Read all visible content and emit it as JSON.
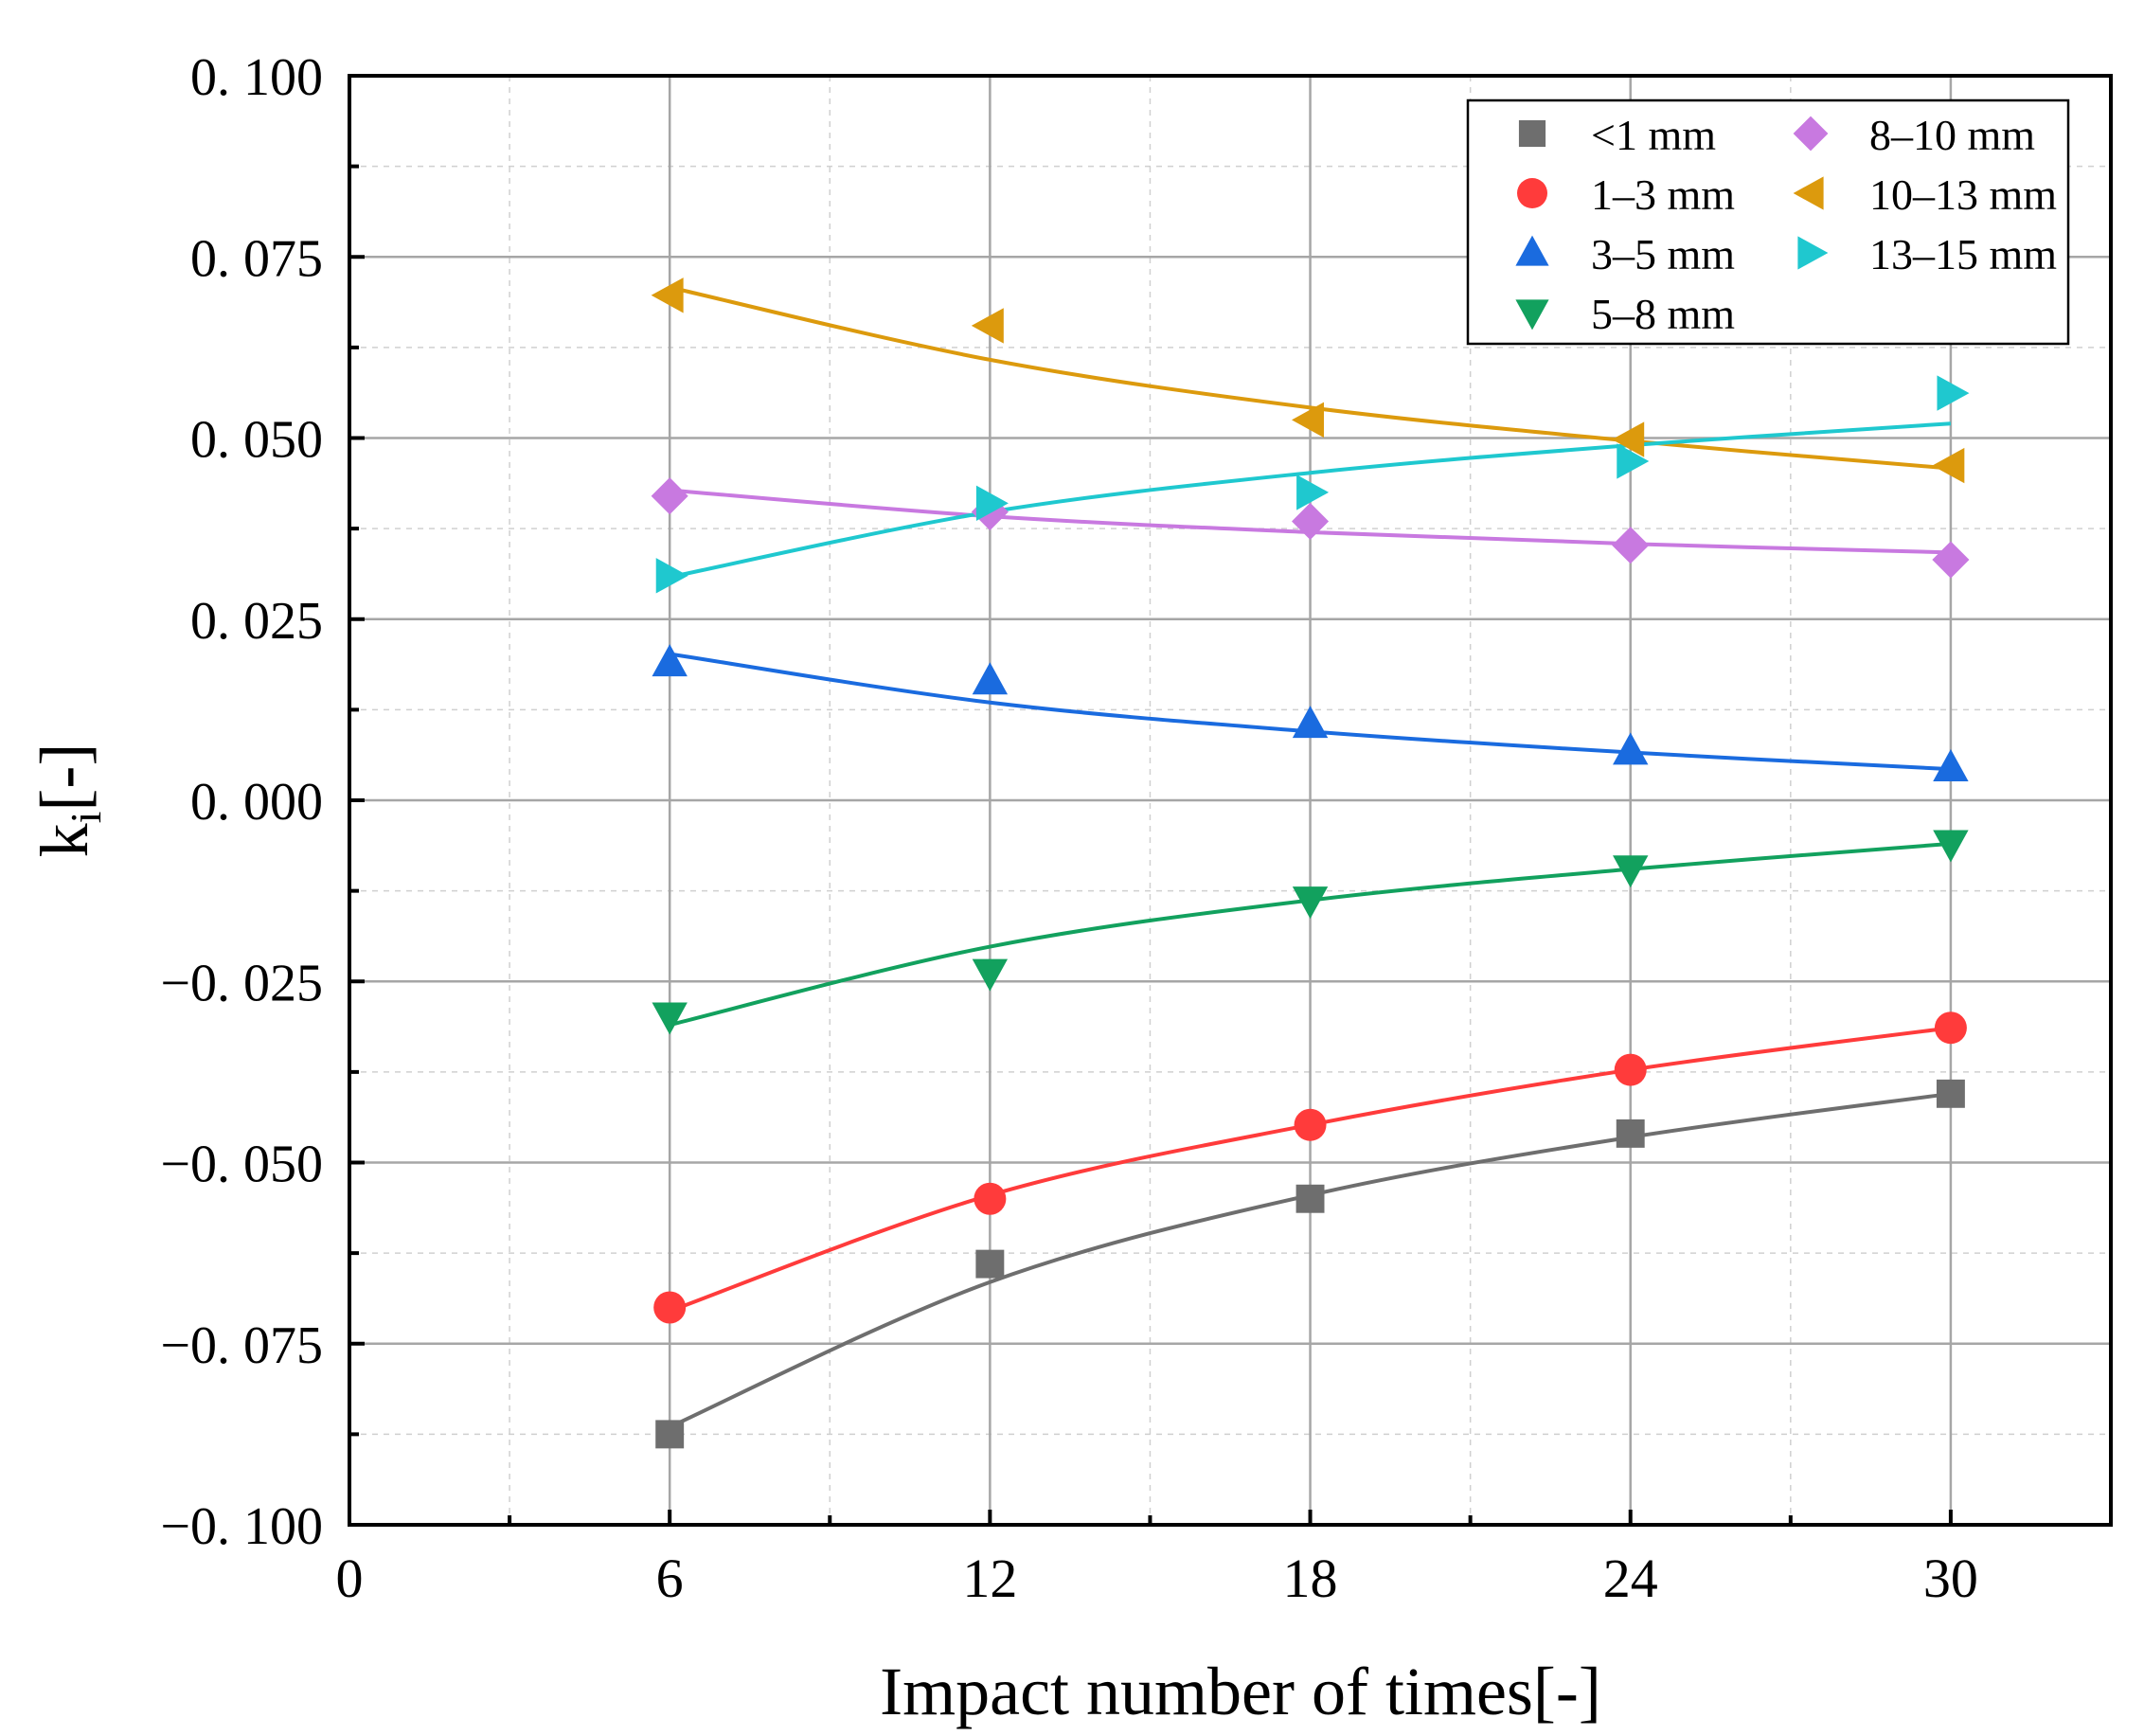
{
  "chart_data": {
    "type": "scatter",
    "title": "",
    "xlabel": "Impact number of times[-]",
    "ylabel": "k",
    "ylabel_subscript": "i",
    "ylabel_suffix": "[-]",
    "xlim": [
      0,
      33
    ],
    "ylim": [
      -0.1,
      0.1
    ],
    "grid": true,
    "legend_position": "top-right",
    "x_ticks": [
      {
        "value": 0,
        "label": "0"
      },
      {
        "value": 6,
        "label": "6"
      },
      {
        "value": 12,
        "label": "12"
      },
      {
        "value": 18,
        "label": "18"
      },
      {
        "value": 24,
        "label": "24"
      },
      {
        "value": 30,
        "label": "30"
      }
    ],
    "y_ticks": [
      {
        "value": 0.1,
        "label": "0. 100"
      },
      {
        "value": 0.075,
        "label": "0. 075"
      },
      {
        "value": 0.05,
        "label": "0. 050"
      },
      {
        "value": 0.025,
        "label": "0. 025"
      },
      {
        "value": 0.0,
        "label": "0. 000"
      },
      {
        "value": -0.025,
        "label": "−0. 025"
      },
      {
        "value": -0.05,
        "label": "−0. 050"
      },
      {
        "value": -0.075,
        "label": "−0. 075"
      },
      {
        "value": -0.1,
        "label": "−0. 100"
      }
    ],
    "x": [
      6,
      12,
      18,
      24,
      30
    ],
    "series": [
      {
        "name": "<1 mm",
        "marker": "square",
        "color": "#6e6e6e",
        "values": [
          -0.0875,
          -0.064,
          -0.055,
          -0.046,
          -0.0405
        ],
        "fit": [
          -0.0865,
          -0.0665,
          -0.0545,
          -0.0465,
          -0.0405
        ]
      },
      {
        "name": "1–3 mm",
        "marker": "circle",
        "color": "#ff3b3b",
        "values": [
          -0.07,
          -0.055,
          -0.0448,
          -0.0372,
          -0.0314
        ],
        "fit": [
          -0.0705,
          -0.0545,
          -0.0448,
          -0.0372,
          -0.0314
        ]
      },
      {
        "name": "3–5 mm",
        "marker": "triangle-up",
        "color": "#1a6bdf",
        "values": [
          0.019,
          0.0165,
          0.0105,
          0.0068,
          0.0045
        ],
        "fit": [
          0.0202,
          0.0135,
          0.0095,
          0.0066,
          0.0043
        ]
      },
      {
        "name": "5–8 mm",
        "marker": "triangle-down",
        "color": "#12a15e",
        "values": [
          -0.0298,
          -0.0238,
          -0.0138,
          -0.0095,
          -0.006
        ],
        "fit": [
          -0.031,
          -0.0202,
          -0.0138,
          -0.0095,
          -0.006
        ]
      },
      {
        "name": "8–10 mm",
        "marker": "diamond",
        "color": "#c879e0",
        "values": [
          0.042,
          0.0398,
          0.0385,
          0.0352,
          0.0332
        ],
        "fit": [
          0.0428,
          0.0392,
          0.037,
          0.0354,
          0.0342
        ]
      },
      {
        "name": "10–13 mm",
        "marker": "triangle-left",
        "color": "#dc9a0d",
        "values": [
          0.0697,
          0.0655,
          0.0525,
          0.0498,
          0.0462
        ],
        "fit": [
          0.0708,
          0.0608,
          0.0542,
          0.0496,
          0.0458
        ]
      },
      {
        "name": "13–15 mm",
        "marker": "triangle-right",
        "color": "#1fc8cf",
        "values": [
          0.031,
          0.041,
          0.0425,
          0.0468,
          0.0562
        ],
        "fit": [
          0.0308,
          0.0398,
          0.0452,
          0.049,
          0.052
        ]
      }
    ]
  }
}
